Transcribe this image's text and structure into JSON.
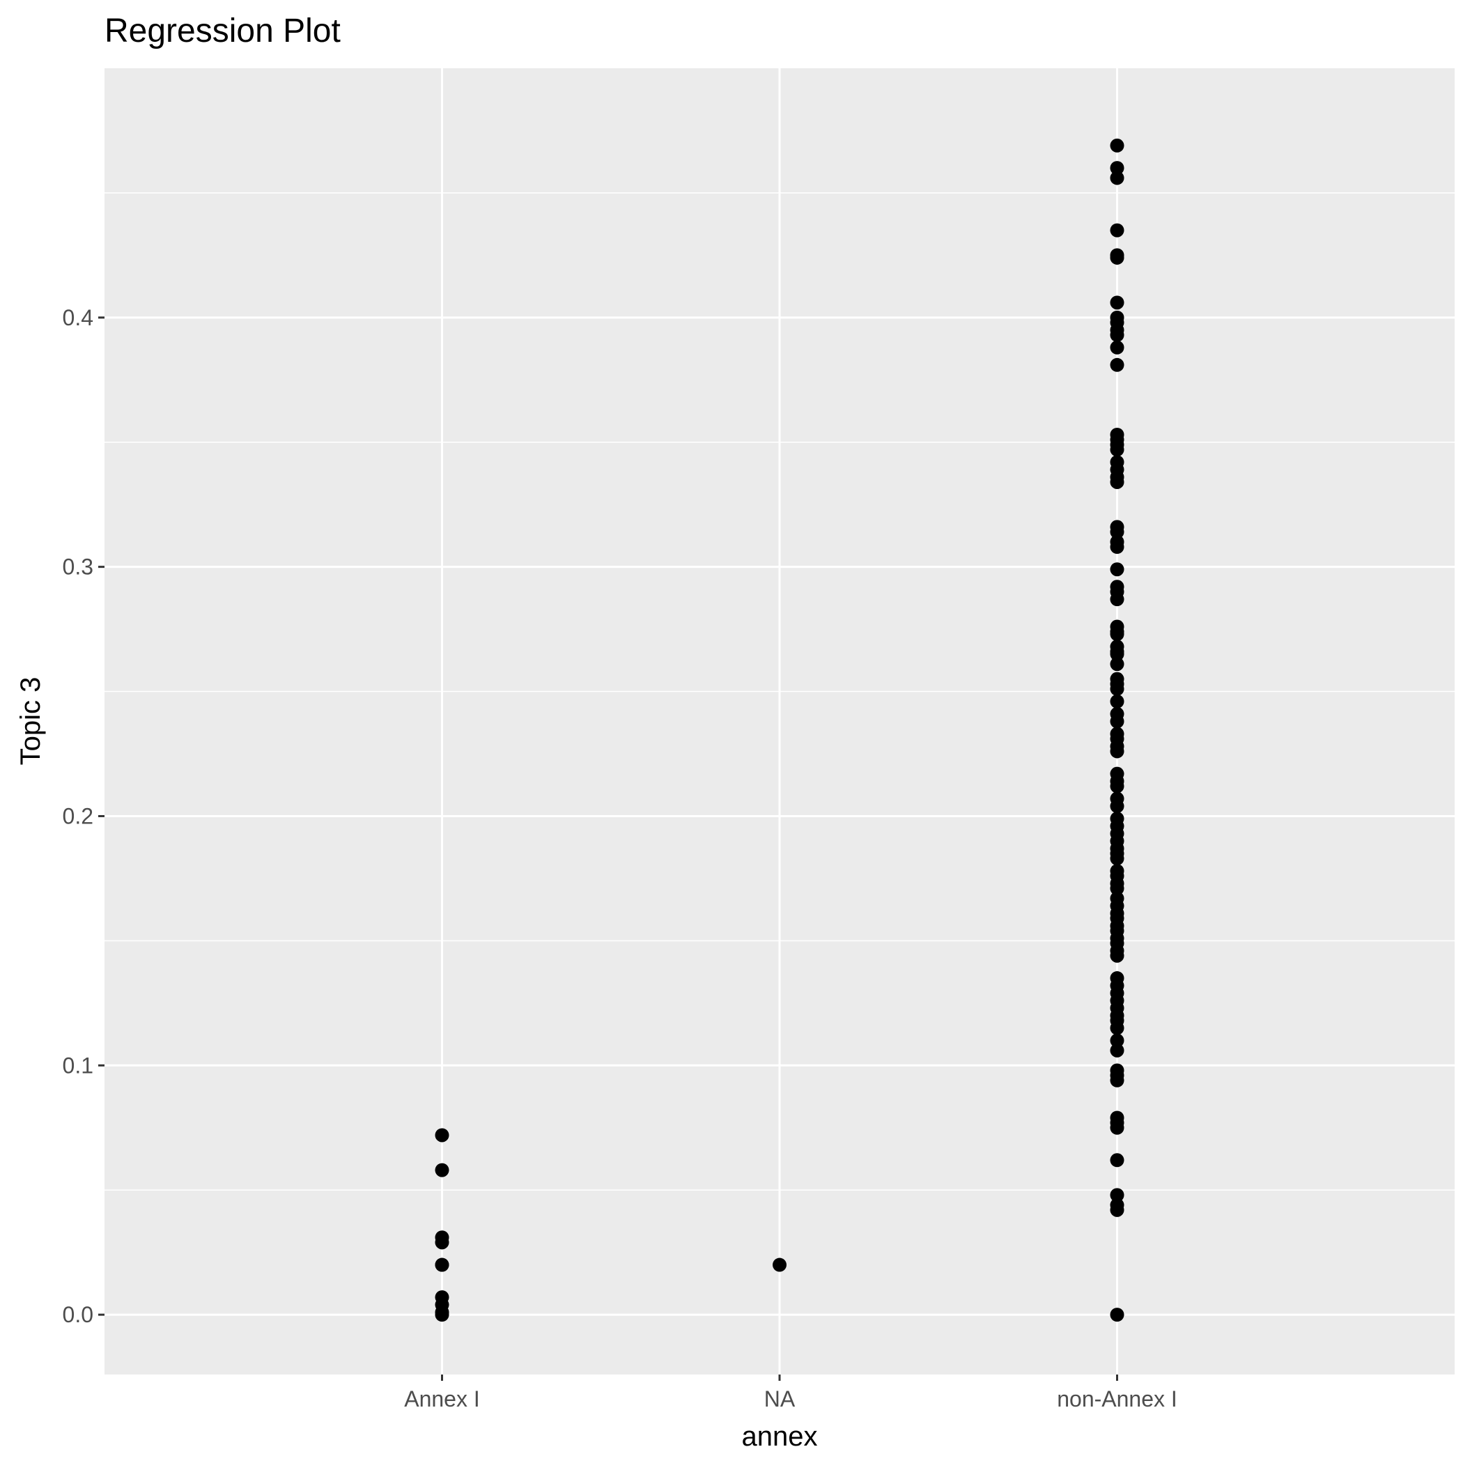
{
  "chart_data": {
    "type": "scatter",
    "title": "Regression Plot",
    "xlabel": "annex",
    "ylabel": "Topic 3",
    "categories": [
      "Annex I",
      "NA",
      "non-Annex I"
    ],
    "ylim": [
      -0.024,
      0.5
    ],
    "yticks": [
      0.0,
      0.1,
      0.2,
      0.3,
      0.4
    ],
    "ytick_labels": [
      "0.0",
      "0.1",
      "0.2",
      "0.3",
      "0.4"
    ],
    "grid": true,
    "panel_background": "#ebebeb",
    "grid_color": "#ffffff",
    "point_color": "#000000",
    "series": [
      {
        "category": "Annex I",
        "values": [
          0.072,
          0.058,
          0.031,
          0.029,
          0.02,
          0.02,
          0.007,
          0.004,
          0.001,
          0.0
        ]
      },
      {
        "category": "NA",
        "values": [
          0.02
        ]
      },
      {
        "category": "non-Annex I",
        "values": [
          0.469,
          0.46,
          0.456,
          0.435,
          0.425,
          0.424,
          0.406,
          0.4,
          0.398,
          0.395,
          0.393,
          0.388,
          0.381,
          0.353,
          0.351,
          0.349,
          0.347,
          0.342,
          0.339,
          0.336,
          0.334,
          0.316,
          0.314,
          0.31,
          0.308,
          0.299,
          0.292,
          0.29,
          0.287,
          0.276,
          0.274,
          0.273,
          0.268,
          0.266,
          0.265,
          0.261,
          0.255,
          0.253,
          0.251,
          0.246,
          0.241,
          0.238,
          0.233,
          0.231,
          0.228,
          0.226,
          0.217,
          0.214,
          0.212,
          0.207,
          0.204,
          0.199,
          0.196,
          0.193,
          0.19,
          0.187,
          0.185,
          0.183,
          0.178,
          0.176,
          0.173,
          0.171,
          0.167,
          0.164,
          0.161,
          0.159,
          0.156,
          0.154,
          0.151,
          0.149,
          0.146,
          0.144,
          0.135,
          0.132,
          0.129,
          0.126,
          0.123,
          0.12,
          0.118,
          0.115,
          0.11,
          0.106,
          0.098,
          0.096,
          0.094,
          0.079,
          0.077,
          0.075,
          0.062,
          0.048,
          0.044,
          0.042,
          0.0
        ]
      }
    ]
  }
}
